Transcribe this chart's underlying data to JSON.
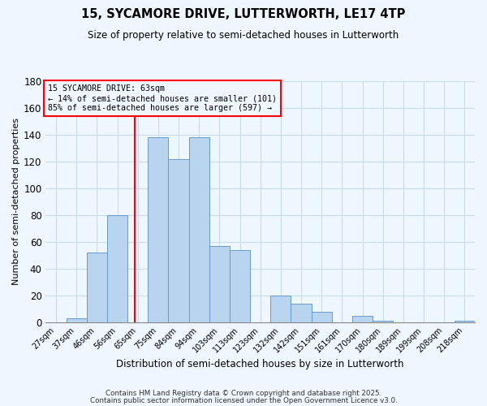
{
  "title": "15, SYCAMORE DRIVE, LUTTERWORTH, LE17 4TP",
  "subtitle": "Size of property relative to semi-detached houses in Lutterworth",
  "xlabel": "Distribution of semi-detached houses by size in Lutterworth",
  "ylabel": "Number of semi-detached properties",
  "bin_labels": [
    "27sqm",
    "37sqm",
    "46sqm",
    "56sqm",
    "65sqm",
    "75sqm",
    "84sqm",
    "94sqm",
    "103sqm",
    "113sqm",
    "123sqm",
    "132sqm",
    "142sqm",
    "151sqm",
    "161sqm",
    "170sqm",
    "180sqm",
    "189sqm",
    "199sqm",
    "208sqm",
    "218sqm"
  ],
  "bar_values": [
    0,
    3,
    52,
    80,
    0,
    138,
    122,
    138,
    57,
    54,
    0,
    20,
    14,
    8,
    0,
    5,
    1,
    0,
    0,
    0,
    1
  ],
  "property_size": 63,
  "property_line_index": 3.85,
  "pct_smaller": 14,
  "n_smaller": 101,
  "pct_larger": 85,
  "n_larger": 597,
  "ylim": [
    0,
    180
  ],
  "yticks": [
    0,
    20,
    40,
    60,
    80,
    100,
    120,
    140,
    160,
    180
  ],
  "bar_facecolor": "#b8d4ee",
  "bar_edgecolor": "#6699cc",
  "vline_color": "red",
  "annotation_box_edgecolor": "red",
  "grid_color": "#c8dcea",
  "bg_color": "#eef6ff",
  "footer1": "Contains HM Land Registry data © Crown copyright and database right 2025.",
  "footer2": "Contains public sector information licensed under the Open Government Licence v3.0."
}
